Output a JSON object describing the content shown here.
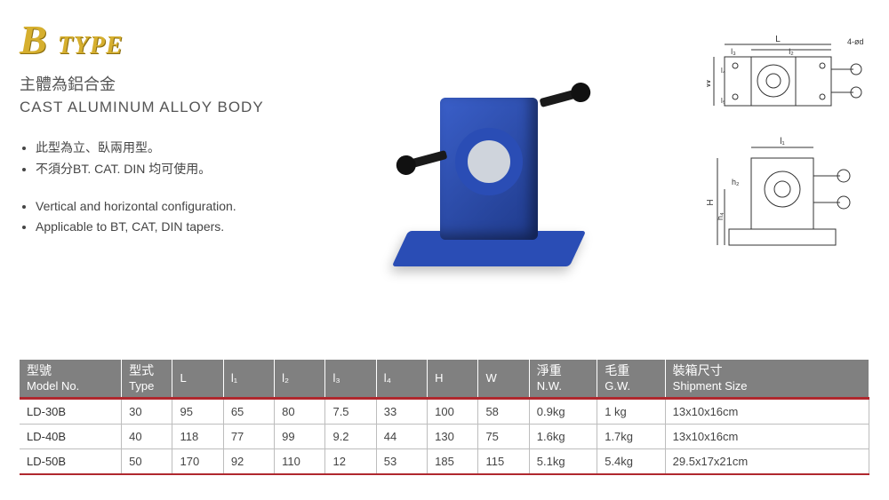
{
  "title": {
    "big": "B",
    "word": "TYPE"
  },
  "subtitle": {
    "zh": "主體為鋁合金",
    "en": "CAST ALUMINUM ALLOY BODY"
  },
  "bullets_zh": [
    "此型為立、臥兩用型。",
    "不須分BT. CAT. DIN 均可使用。"
  ],
  "bullets_en": [
    "Vertical and horizontal configuration.",
    "Applicable to BT, CAT, DIN tapers."
  ],
  "colors": {
    "gold": "#d6af2e",
    "header_bg": "#808080",
    "header_text": "#ffffff",
    "accent_red": "#b0282e",
    "grid": "#bdbdbd",
    "body_text": "#444444",
    "product_blue": "#2a4db5"
  },
  "diagram_labels": {
    "top": {
      "L": "L",
      "l2": "l₂",
      "l3": "l₃",
      "four_d": "4-ød",
      "W": "W",
      "l4": "l₄",
      "l5": "l₅"
    },
    "front": {
      "l1": "l₁",
      "H": "H",
      "h2": "h₂",
      "h4": "h₄"
    }
  },
  "table": {
    "columns": [
      {
        "zh": "型號",
        "en": "Model No."
      },
      {
        "zh": "型式",
        "en": "Type"
      },
      {
        "zh": "",
        "en": "L"
      },
      {
        "zh": "",
        "en": "l₁"
      },
      {
        "zh": "",
        "en": "l₂"
      },
      {
        "zh": "",
        "en": "l₃"
      },
      {
        "zh": "",
        "en": "l₄"
      },
      {
        "zh": "",
        "en": "H"
      },
      {
        "zh": "",
        "en": "W"
      },
      {
        "zh": "淨重",
        "en": "N.W."
      },
      {
        "zh": "毛重",
        "en": "G.W."
      },
      {
        "zh": "裝箱尺寸",
        "en": "Shipment Size"
      }
    ],
    "rows": [
      [
        "LD-30B",
        "30",
        "95",
        "65",
        "80",
        "7.5",
        "33",
        "100",
        "58",
        "0.9kg",
        "1  kg",
        "13x10x16cm"
      ],
      [
        "LD-40B",
        "40",
        "118",
        "77",
        "99",
        "9.2",
        "44",
        "130",
        "75",
        "1.6kg",
        "1.7kg",
        "13x10x16cm"
      ],
      [
        "LD-50B",
        "50",
        "170",
        "92",
        "110",
        "12",
        "53",
        "185",
        "115",
        "5.1kg",
        "5.4kg",
        "29.5x17x21cm"
      ]
    ],
    "col_widths_pct": [
      12,
      6,
      6,
      6,
      6,
      6,
      6,
      6,
      6,
      8,
      8,
      24
    ]
  }
}
